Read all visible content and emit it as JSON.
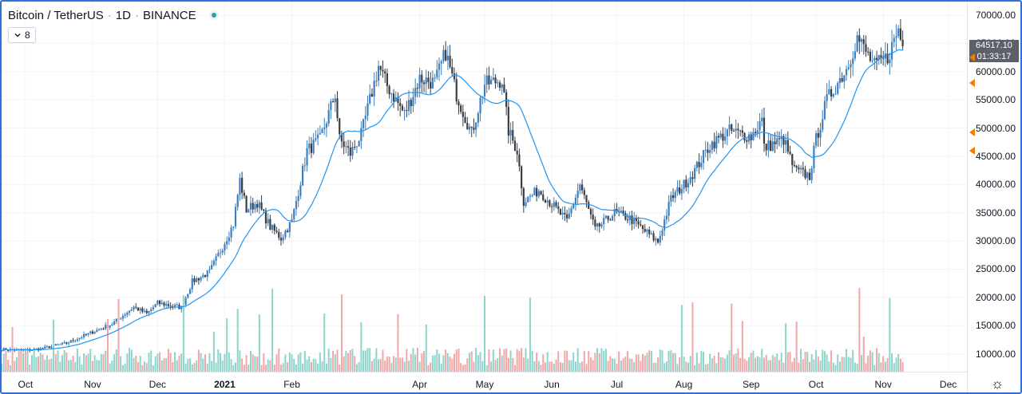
{
  "header": {
    "symbol": "Bitcoin / TetherUS",
    "sep1": "·",
    "interval": "1D",
    "sep2": "·",
    "exchange": "BINANCE"
  },
  "indicator": {
    "value": "8",
    "icon": "chevron-down-icon"
  },
  "price_label": {
    "price": "64517.10",
    "countdown": "01:33:17"
  },
  "colors": {
    "up": "#3d7fc1",
    "down": "#3a3d45",
    "vol_up": "#8fd4cc",
    "vol_down": "#f2a6a6",
    "ma": "#2196f3",
    "marker": "#f57c00",
    "price_tag": "#5d606b"
  },
  "chart_data": {
    "type": "candlestick",
    "title": "Bitcoin / TetherUS · 1D · BINANCE",
    "ma_period": 8,
    "y_ticks": [
      "70000.00",
      "65000.00",
      "60000.00",
      "55000.00",
      "50000.00",
      "45000.00",
      "40000.00",
      "35000.00",
      "30000.00",
      "25000.00",
      "20000.00",
      "15000.00",
      "10000.00"
    ],
    "ylim": [
      5000,
      70000
    ],
    "x_ticks": [
      "Oct",
      "Nov",
      "Dec",
      "2021",
      "Feb",
      "Apr",
      "May",
      "Jun",
      "Jul",
      "Aug",
      "Sep",
      "Oct",
      "Nov",
      "Dec"
    ],
    "x_tick_dates": [
      "2020-10-01",
      "2020-11-01",
      "2020-12-01",
      "2021-01-01",
      "2021-02-01",
      "2021-04-01",
      "2021-05-01",
      "2021-06-01",
      "2021-07-01",
      "2021-08-01",
      "2021-09-01",
      "2021-10-01",
      "2021-11-01",
      "2021-12-01"
    ],
    "x_range": [
      "2020-09-20",
      "2021-12-10"
    ],
    "close_series": [
      [
        "2020-09-20",
        10800
      ],
      [
        "2020-10-01",
        10600
      ],
      [
        "2020-10-08",
        10900
      ],
      [
        "2020-10-20",
        11900
      ],
      [
        "2020-10-31",
        13700
      ],
      [
        "2020-11-10",
        15300
      ],
      [
        "2020-11-20",
        18300
      ],
      [
        "2020-11-26",
        17100
      ],
      [
        "2020-12-01",
        19000
      ],
      [
        "2020-12-12",
        18200
      ],
      [
        "2020-12-17",
        22800
      ],
      [
        "2020-12-25",
        24500
      ],
      [
        "2020-12-31",
        29000
      ],
      [
        "2021-01-05",
        33000
      ],
      [
        "2021-01-08",
        40800
      ],
      [
        "2021-01-11",
        35500
      ],
      [
        "2021-01-16",
        36800
      ],
      [
        "2021-01-22",
        32500
      ],
      [
        "2021-01-27",
        30500
      ],
      [
        "2021-02-01",
        33500
      ],
      [
        "2021-02-08",
        46000
      ],
      [
        "2021-02-14",
        48000
      ],
      [
        "2021-02-21",
        56000
      ],
      [
        "2021-02-23",
        48000
      ],
      [
        "2021-02-28",
        45500
      ],
      [
        "2021-03-05",
        48800
      ],
      [
        "2021-03-13",
        61000
      ],
      [
        "2021-03-17",
        57500
      ],
      [
        "2021-03-25",
        52500
      ],
      [
        "2021-04-01",
        58800
      ],
      [
        "2021-04-08",
        58000
      ],
      [
        "2021-04-13",
        63500
      ],
      [
        "2021-04-18",
        56000
      ],
      [
        "2021-04-25",
        49000
      ],
      [
        "2021-05-01",
        57800
      ],
      [
        "2021-05-09",
        58500
      ],
      [
        "2021-05-12",
        49500
      ],
      [
        "2021-05-16",
        46000
      ],
      [
        "2021-05-19",
        37000
      ],
      [
        "2021-05-26",
        39000
      ],
      [
        "2021-06-01",
        36500
      ],
      [
        "2021-06-08",
        33500
      ],
      [
        "2021-06-14",
        40000
      ],
      [
        "2021-06-21",
        32000
      ],
      [
        "2021-06-30",
        35000
      ],
      [
        "2021-07-07",
        34000
      ],
      [
        "2021-07-20",
        29800
      ],
      [
        "2021-07-26",
        37500
      ],
      [
        "2021-08-01",
        40000
      ],
      [
        "2021-08-06",
        42500
      ],
      [
        "2021-08-13",
        47000
      ],
      [
        "2021-08-22",
        49500
      ],
      [
        "2021-09-01",
        48500
      ],
      [
        "2021-09-06",
        51500
      ],
      [
        "2021-09-07",
        46500
      ],
      [
        "2021-09-16",
        48000
      ],
      [
        "2021-09-21",
        42500
      ],
      [
        "2021-09-28",
        41500
      ],
      [
        "2021-10-01",
        48000
      ],
      [
        "2021-10-06",
        55000
      ],
      [
        "2021-10-15",
        60500
      ],
      [
        "2021-10-20",
        66000
      ],
      [
        "2021-10-28",
        61000
      ],
      [
        "2021-11-03",
        62500
      ],
      [
        "2021-11-08",
        67500
      ],
      [
        "2021-11-10",
        64517
      ]
    ]
  }
}
